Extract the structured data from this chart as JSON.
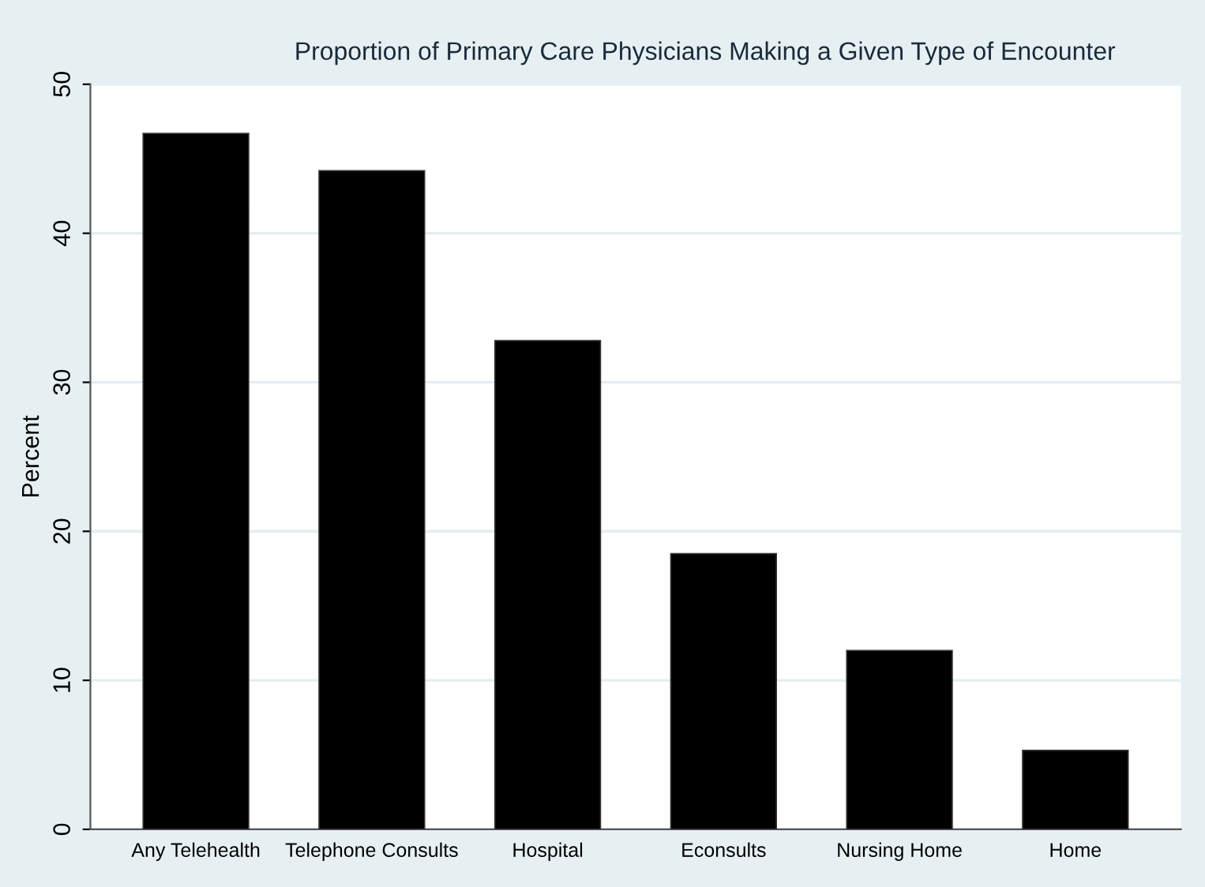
{
  "chart_data": {
    "type": "bar",
    "title": "Proportion of Primary Care Physicians Making a Given Type of Encounter",
    "ylabel": "Percent",
    "categories": [
      "Any Telehealth",
      "Telephone Consults",
      "Hospital",
      "Econsults",
      "Nursing Home",
      "Home"
    ],
    "values": [
      46.7,
      44.2,
      32.8,
      18.5,
      12.0,
      5.3
    ],
    "color": "#000000",
    "ylim": [
      0,
      50
    ],
    "yticks": [
      0,
      10,
      20,
      30,
      40,
      50
    ],
    "grid": "y"
  }
}
